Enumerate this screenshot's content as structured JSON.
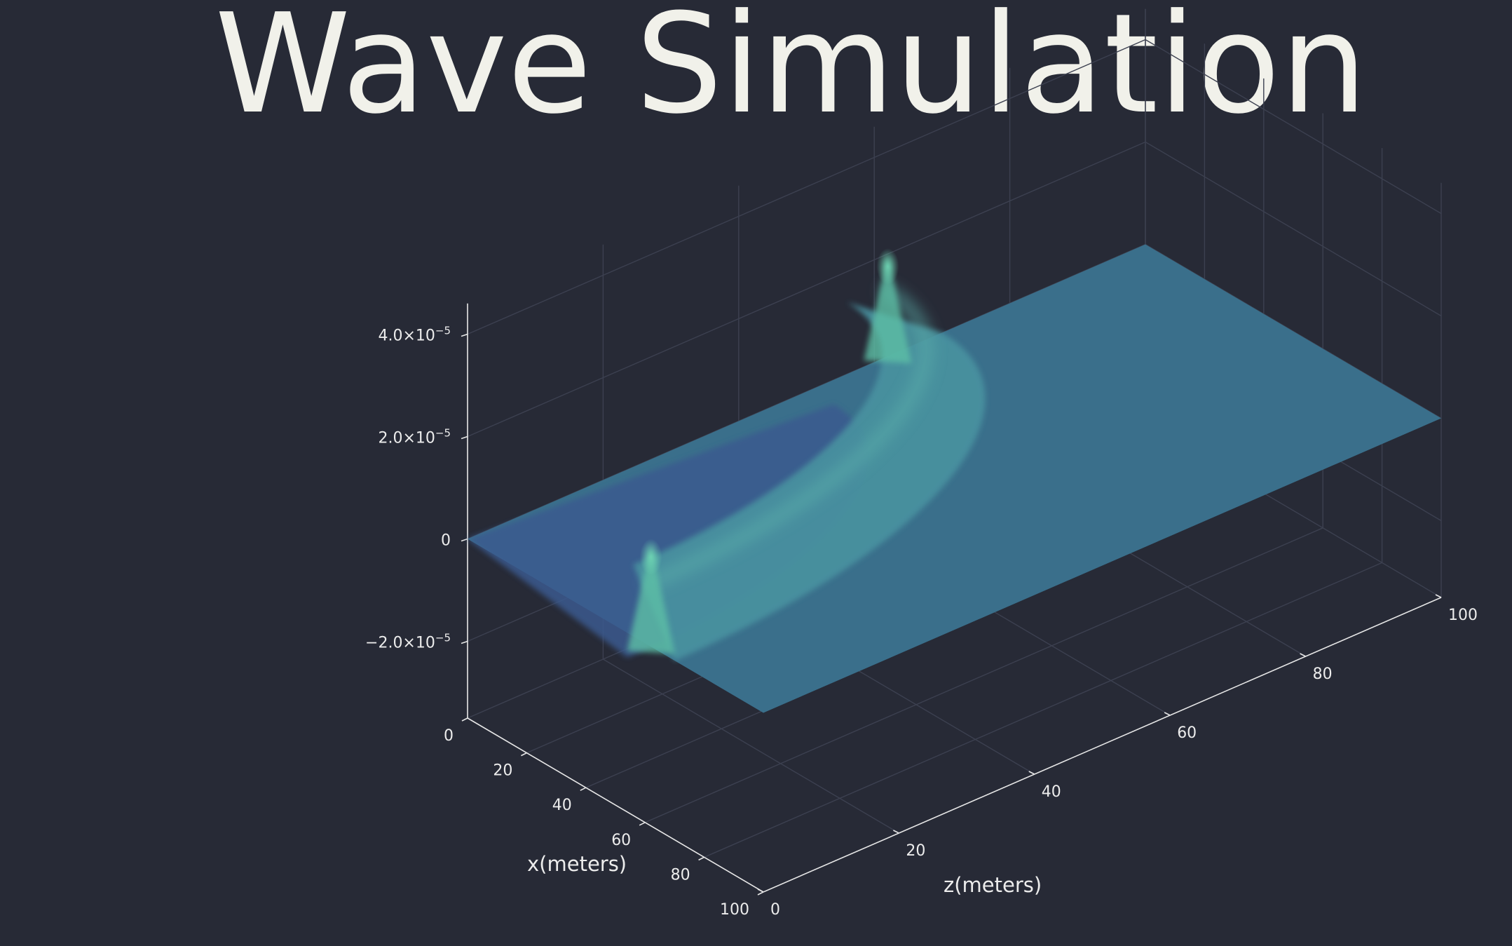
{
  "title": "Wave Simulation",
  "chart_data": {
    "type": "surface",
    "title": "Wave Simulation",
    "xlabel": "x(meters)",
    "ylabel": "z(meters)",
    "zlabel": "",
    "xlim": [
      0,
      100
    ],
    "ylim": [
      0,
      100
    ],
    "zlim": [
      -3.5e-05,
      4.6e-05
    ],
    "x_ticks": [
      "0",
      "20",
      "40",
      "60",
      "80",
      "100"
    ],
    "y_ticks": [
      "0",
      "20",
      "40",
      "60",
      "80",
      "100"
    ],
    "z_ticks": [
      {
        "value": -2e-05,
        "mantissa": "−2.0×10",
        "exp": "−5"
      },
      {
        "value": 0,
        "mantissa": "0",
        "exp": ""
      },
      {
        "value": 2e-05,
        "mantissa": "2.0×10",
        "exp": "−5"
      },
      {
        "value": 4e-05,
        "mantissa": "4.0×10",
        "exp": "−5"
      }
    ],
    "grid": true,
    "legend": false,
    "colormap": [
      "#3b5a8f",
      "#3f7596",
      "#4a93a0",
      "#5dc0a6"
    ],
    "surface": {
      "description": "expanding circular wavefront inside a square domain",
      "source_point": [
        0,
        0
      ],
      "wave_radius": 62,
      "wave_peak_amplitude": 1.4e-05,
      "trough_amplitude": -1.2e-05,
      "edge_peaks": [
        {
          "x": 0,
          "z": 62,
          "amplitude": 2e-05
        },
        {
          "x": 62,
          "z": 0,
          "amplitude": 2e-05
        }
      ]
    }
  },
  "colors": {
    "background": "#272a36",
    "text": "#ececec",
    "grid": "#3c4050"
  }
}
